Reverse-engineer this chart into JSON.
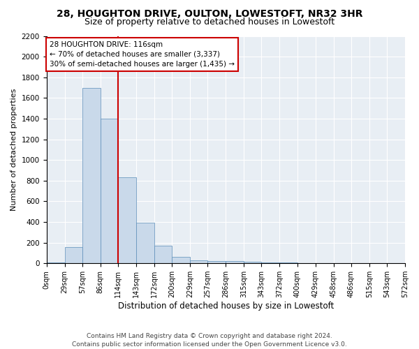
{
  "title": "28, HOUGHTON DRIVE, OULTON, LOWESTOFT, NR32 3HR",
  "subtitle": "Size of property relative to detached houses in Lowestoft",
  "xlabel": "Distribution of detached houses by size in Lowestoft",
  "ylabel": "Number of detached properties",
  "bar_values": [
    10,
    160,
    1700,
    1400,
    830,
    390,
    170,
    65,
    30,
    25,
    20,
    15,
    10,
    5,
    3,
    2,
    2,
    2,
    2
  ],
  "bin_edges": [
    0,
    29,
    57,
    86,
    114,
    143,
    172,
    200,
    229,
    257,
    286,
    315,
    343,
    372,
    400,
    429,
    458,
    486,
    515,
    543
  ],
  "tick_labels": [
    "0sqm",
    "29sqm",
    "57sqm",
    "86sqm",
    "114sqm",
    "143sqm",
    "172sqm",
    "200sqm",
    "229sqm",
    "257sqm",
    "286sqm",
    "315sqm",
    "343sqm",
    "372sqm",
    "400sqm",
    "429sqm",
    "458sqm",
    "486sqm",
    "515sqm",
    "543sqm",
    "572sqm"
  ],
  "bar_color": "#c9d9ea",
  "bar_edgecolor": "#5b8db8",
  "vline_x": 114,
  "vline_color": "#cc0000",
  "annotation_text": "28 HOUGHTON DRIVE: 116sqm\n← 70% of detached houses are smaller (3,337)\n30% of semi-detached houses are larger (1,435) →",
  "annotation_box_edgecolor": "#cc0000",
  "ylim": [
    0,
    2200
  ],
  "yticks": [
    0,
    200,
    400,
    600,
    800,
    1000,
    1200,
    1400,
    1600,
    1800,
    2000,
    2200
  ],
  "background_color": "#e8eef4",
  "footer_text": "Contains HM Land Registry data © Crown copyright and database right 2024.\nContains public sector information licensed under the Open Government Licence v3.0.",
  "title_fontsize": 10,
  "subtitle_fontsize": 9,
  "xlabel_fontsize": 8.5,
  "ylabel_fontsize": 8,
  "tick_fontsize": 7,
  "ytick_fontsize": 7.5
}
